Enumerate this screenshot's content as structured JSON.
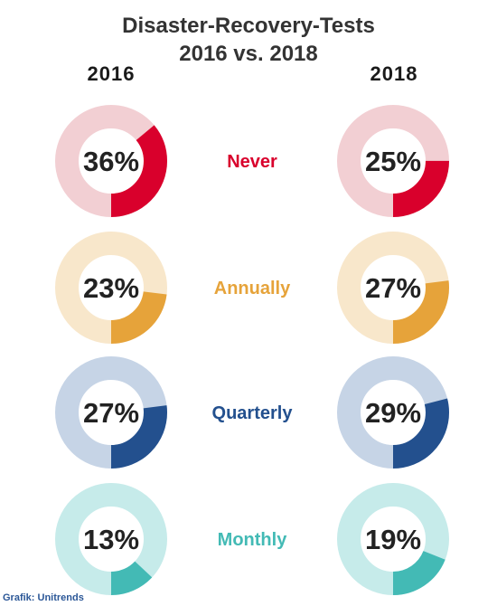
{
  "chart_data": {
    "type": "pie",
    "title": "Disaster-Recovery-Tests",
    "subtitle": "2016 vs. 2018",
    "columns": [
      "2016",
      "2018"
    ],
    "categories": [
      {
        "label": "Never",
        "color": "#d9002c",
        "light": "#f2cfd3",
        "values": [
          36,
          25
        ]
      },
      {
        "label": "Annually",
        "color": "#e6a33a",
        "light": "#f8e7cb",
        "values": [
          23,
          27
        ]
      },
      {
        "label": "Quarterly",
        "color": "#23508e",
        "light": "#c6d4e6",
        "values": [
          27,
          29
        ]
      },
      {
        "label": "Monthly",
        "color": "#43bab5",
        "light": "#c6ebea",
        "values": [
          13,
          19
        ]
      }
    ]
  },
  "credit": "Grafik: Unitrends"
}
